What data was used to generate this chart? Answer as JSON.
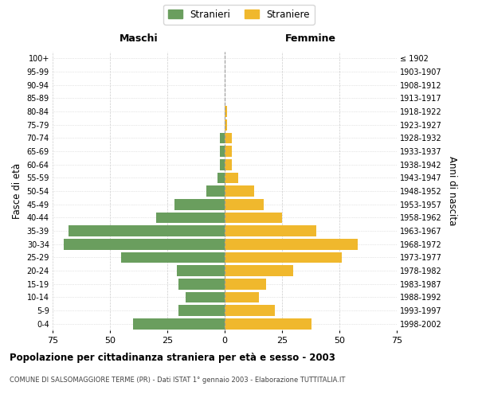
{
  "age_groups": [
    "0-4",
    "5-9",
    "10-14",
    "15-19",
    "20-24",
    "25-29",
    "30-34",
    "35-39",
    "40-44",
    "45-49",
    "50-54",
    "55-59",
    "60-64",
    "65-69",
    "70-74",
    "75-79",
    "80-84",
    "85-89",
    "90-94",
    "95-99",
    "100+"
  ],
  "birth_years": [
    "1998-2002",
    "1993-1997",
    "1988-1992",
    "1983-1987",
    "1978-1982",
    "1973-1977",
    "1968-1972",
    "1963-1967",
    "1958-1962",
    "1953-1957",
    "1948-1952",
    "1943-1947",
    "1938-1942",
    "1933-1937",
    "1928-1932",
    "1923-1927",
    "1918-1922",
    "1913-1917",
    "1908-1912",
    "1903-1907",
    "≤ 1902"
  ],
  "males": [
    40,
    20,
    17,
    20,
    21,
    45,
    70,
    68,
    30,
    22,
    8,
    3,
    2,
    2,
    2,
    0,
    0,
    0,
    0,
    0,
    0
  ],
  "females": [
    38,
    22,
    15,
    18,
    30,
    51,
    58,
    40,
    25,
    17,
    13,
    6,
    3,
    3,
    3,
    1,
    1,
    0,
    0,
    0,
    0
  ],
  "male_color": "#6a9e5e",
  "female_color": "#f0b82d",
  "background_color": "#ffffff",
  "grid_color": "#cccccc",
  "xlim": 75,
  "title": "Popolazione per cittadinanza straniera per età e sesso - 2003",
  "subtitle": "COMUNE DI SALSOMAGGIORE TERME (PR) - Dati ISTAT 1° gennaio 2003 - Elaborazione TUTTITALIA.IT",
  "xlabel_left": "Maschi",
  "xlabel_right": "Femmine",
  "ylabel_left": "Fasce di età",
  "ylabel_right": "Anni di nascita",
  "legend_male": "Stranieri",
  "legend_female": "Straniere"
}
